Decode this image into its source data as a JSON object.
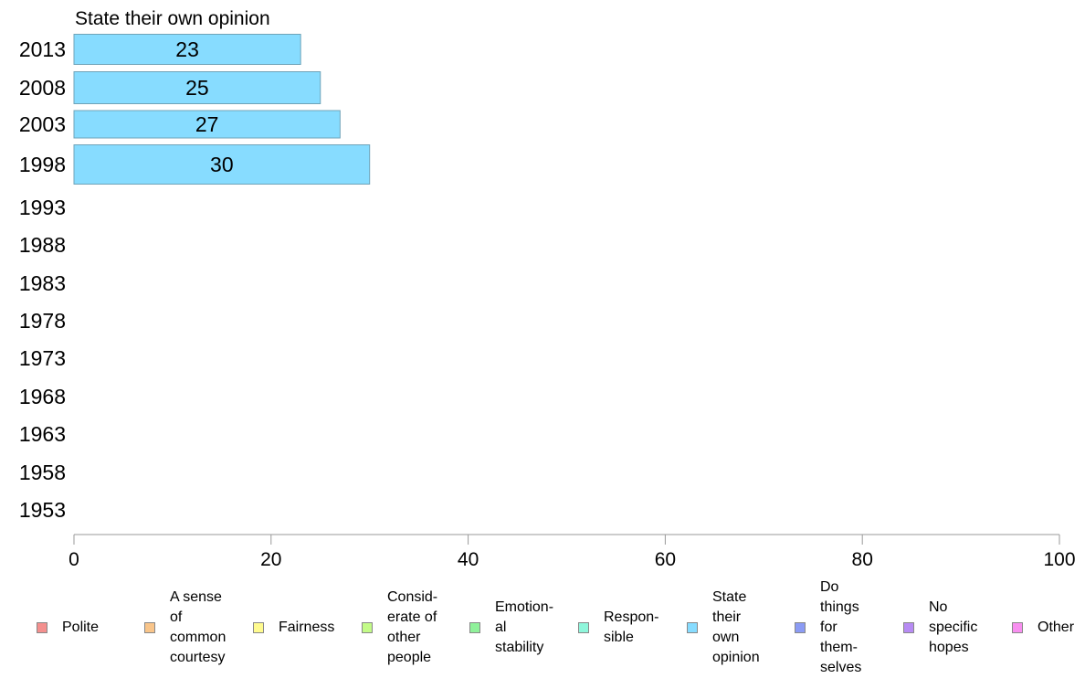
{
  "chart_data": {
    "type": "bar",
    "orientation": "horizontal",
    "title": "State their own opinion",
    "categories": [
      "2013",
      "2008",
      "2003",
      "1998",
      "1993",
      "1988",
      "1983",
      "1978",
      "1973",
      "1968",
      "1963",
      "1958",
      "1953"
    ],
    "series": [
      {
        "name": "State their own opinion",
        "color": "#87dcff",
        "values": [
          23,
          25,
          27,
          30,
          null,
          null,
          null,
          null,
          null,
          null,
          null,
          null,
          null
        ]
      }
    ],
    "xlim": [
      0,
      100
    ],
    "xticks": [
      "0",
      "20",
      "40",
      "60",
      "80",
      "100"
    ],
    "grid": false,
    "legend_placement": "bottom"
  },
  "legend": [
    {
      "label": "Polite",
      "color": "#f4908e"
    },
    {
      "label": "A sense\nof\ncommon\ncourtesy",
      "color": "#f9c58a"
    },
    {
      "label": "Fairness",
      "color": "#fffb8f"
    },
    {
      "label": "Consid-\nerate of\nother\npeople",
      "color": "#c3fb88"
    },
    {
      "label": "Emotion-\nal\nstability",
      "color": "#8ff19a"
    },
    {
      "label": "Respon-\nsible",
      "color": "#8ff6db"
    },
    {
      "label": "State\ntheir\nown\nopinion",
      "color": "#87dcff"
    },
    {
      "label": "Do\nthings\nfor\nthem-\nselves",
      "color": "#8b9bf4"
    },
    {
      "label": "No\nspecific\nhopes",
      "color": "#b78bf4"
    },
    {
      "label": "Other",
      "color": "#f88ff0"
    }
  ]
}
